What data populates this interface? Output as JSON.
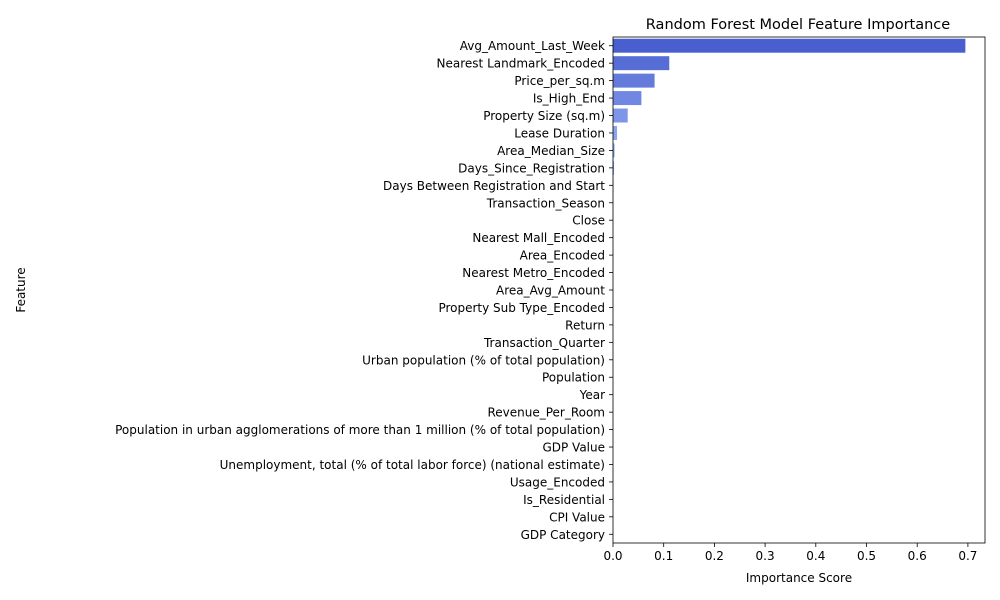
{
  "chart_data": {
    "type": "bar",
    "orientation": "horizontal",
    "title": "Random Forest Model Feature Importance",
    "xlabel": "Importance Score",
    "ylabel": "Feature",
    "xlim": [
      0,
      0.73
    ],
    "x_ticks": [
      "0.0",
      "0.1",
      "0.2",
      "0.3",
      "0.4",
      "0.5",
      "0.6",
      "0.7"
    ],
    "grid": false,
    "legend": "none",
    "bar_color_top": "#4a5fcf",
    "bar_color_light": "#8aa4f0",
    "categories": [
      "Avg_Amount_Last_Week",
      "Nearest Landmark_Encoded",
      "Price_per_sq.m",
      "Is_High_End",
      "Property Size (sq.m)",
      "Lease Duration",
      "Area_Median_Size",
      "Days_Since_Registration",
      "Days Between Registration and Start",
      "Transaction_Season",
      "Close",
      "Nearest Mall_Encoded",
      "Area_Encoded",
      "Nearest Metro_Encoded",
      "Area_Avg_Amount",
      "Property Sub Type_Encoded",
      "Return",
      "Transaction_Quarter",
      "Urban population (% of total population)",
      "Population",
      "Year",
      "Revenue_Per_Room",
      "Population in urban agglomerations of more than 1 million (% of total population)",
      "GDP Value",
      "Unemployment, total (% of total labor force) (national estimate)",
      "Usage_Encoded",
      "Is_Residential",
      "CPI Value",
      "GDP Category"
    ],
    "values": [
      0.695,
      0.111,
      0.082,
      0.056,
      0.029,
      0.008,
      0.003,
      0.002,
      0.001,
      0.0005,
      0.0004,
      0.0003,
      0.0003,
      0.0002,
      0.0002,
      0.0002,
      0.0001,
      0.0001,
      0.0001,
      0.0001,
      0.0001,
      0.0001,
      0.0,
      0.0,
      0.0,
      0.0,
      0.0,
      0.0,
      0.0
    ]
  }
}
